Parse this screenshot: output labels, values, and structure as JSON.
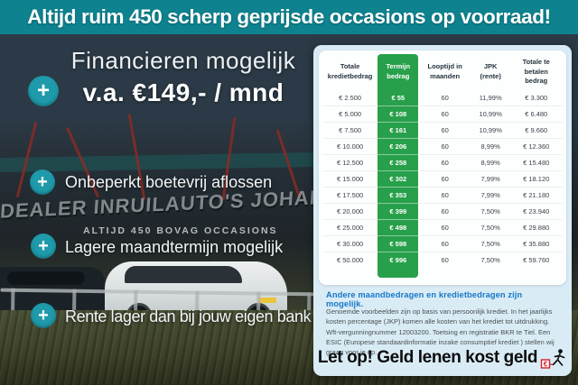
{
  "banner": {
    "text": "Altijd ruim 450 scherp geprijsde occasions op voorraad!"
  },
  "colors": {
    "banner_teal": "#0E828F",
    "navy": "#2B3845",
    "plus_teal": "#1E9AAA",
    "table_green": "#28A04B",
    "panel_blue": "#D9ECF6",
    "heading_blue": "#1878C8"
  },
  "bullets": {
    "plus_icon": "+",
    "hero_line1": "Financieren mogelijk",
    "hero_line2": "v.a. €149,- / mnd",
    "item2": "Onbeperkt boetevrij aflossen",
    "item3": "Lagere maandtermijn mogelijk",
    "item4": "Rente lager dan bij jouw eigen bank"
  },
  "background": {
    "sign_large": "DEALER INRUILAUTO'S JOHAN MEURE",
    "sign_small": "ALTIJD 450 BOVAG OCCASIONS"
  },
  "table": {
    "headers": [
      "Totale kredietbedrag",
      "Termijn bedrag",
      "Looptijd in maanden",
      "JPK (rente)",
      "Totale te betalen bedrag"
    ],
    "rows": [
      [
        "€ 2.500",
        "€ 55",
        "60",
        "11,99%",
        "€ 3.300"
      ],
      [
        "€ 5.000",
        "€ 108",
        "60",
        "10,99%",
        "€ 6.480"
      ],
      [
        "€ 7.500",
        "€ 161",
        "60",
        "10,99%",
        "€ 9.660"
      ],
      [
        "€ 10.000",
        "€ 206",
        "60",
        "8,99%",
        "€ 12.360"
      ],
      [
        "€ 12.500",
        "€ 258",
        "60",
        "8,99%",
        "€ 15.480"
      ],
      [
        "€ 15.000",
        "€ 302",
        "60",
        "7,99%",
        "€ 18.120"
      ],
      [
        "€ 17.500",
        "€ 353",
        "60",
        "7,99%",
        "€ 21.180"
      ],
      [
        "€ 20.000",
        "€ 399",
        "60",
        "7,50%",
        "€ 23.940"
      ],
      [
        "€ 25.000",
        "€ 498",
        "60",
        "7,50%",
        "€ 29.880"
      ],
      [
        "€ 30.000",
        "€ 598",
        "60",
        "7,50%",
        "€ 35.880"
      ],
      [
        "€ 50.000",
        "€ 996",
        "60",
        "7,50%",
        "€ 59.760"
      ]
    ]
  },
  "disclaimer": {
    "heading": "Andere maandbedragen en kredietbedragen zijn mogelijk.",
    "body": "Genoemde voorbeelden zijn op basis van persoonlijk krediet. In het jaarlijks kosten percentage (JKP) komen alle kosten van het krediet tot uitdrukking. Wft-vergunningnummer 12003200. Toetsing en registratie BKR te Tiel. Een ESIC (Europese standaardinformatie inzake consumptief krediet ) stellen wij graag voor je op.",
    "warning": "Let op! Geld lenen kost geld"
  }
}
